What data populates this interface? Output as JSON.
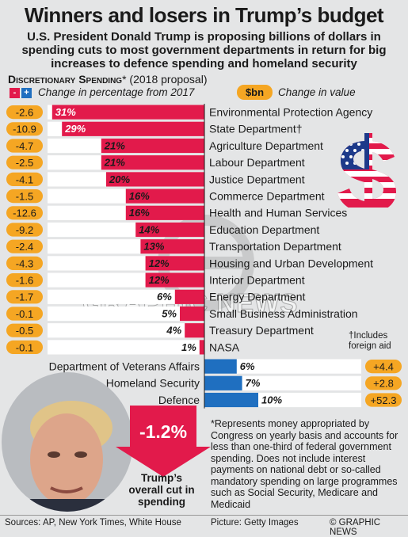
{
  "title": "Winners and losers in Trump’s budget",
  "subtitle": "U.S. President Donald Trump is proposing billions of dollars in spending cuts to most government departments in return for big increases to defence spending and homeland security",
  "section": {
    "title_bold": "Discretionary Spending",
    "title_rest": "* (2018 proposal)"
  },
  "legend": {
    "minus": "-",
    "plus": "+",
    "pct_label": "Change in percentage from 2017",
    "bn_badge": "$bn",
    "value_label": "Change in value"
  },
  "colors": {
    "cut": "#e21a4b",
    "increase": "#1f6fc0",
    "badge": "#f5a623",
    "arrow": "#e21a4b"
  },
  "chart_data": {
    "type": "bar",
    "title": "Discretionary Spending* (2018 proposal)",
    "cuts": [
      {
        "name": "Environmental Protection Agency",
        "pct": 31,
        "pct_label": "31%",
        "value_label": "-2.6",
        "value": -2.6
      },
      {
        "name": "State Department†",
        "pct": 29,
        "pct_label": "29%",
        "value_label": "-10.9",
        "value": -10.9
      },
      {
        "name": "Agriculture Department",
        "pct": 21,
        "pct_label": "21%",
        "value_label": "-4.7",
        "value": -4.7
      },
      {
        "name": "Labour Department",
        "pct": 21,
        "pct_label": "21%",
        "value_label": "-2.5",
        "value": -2.5
      },
      {
        "name": "Justice Department",
        "pct": 20,
        "pct_label": "20%",
        "value_label": "-4.1",
        "value": -4.1
      },
      {
        "name": "Commerce Department",
        "pct": 16,
        "pct_label": "16%",
        "value_label": "-1.5",
        "value": -1.5
      },
      {
        "name": "Health and Human Services",
        "pct": 16,
        "pct_label": "16%",
        "value_label": "-12.6",
        "value": -12.6
      },
      {
        "name": "Education Department",
        "pct": 14,
        "pct_label": "14%",
        "value_label": "-9.2",
        "value": -9.2
      },
      {
        "name": "Transportation Department",
        "pct": 13,
        "pct_label": "13%",
        "value_label": "-2.4",
        "value": -2.4
      },
      {
        "name": "Housing and Urban Development",
        "pct": 12,
        "pct_label": "12%",
        "value_label": "-4.3",
        "value": -4.3
      },
      {
        "name": "Interior Department",
        "pct": 12,
        "pct_label": "12%",
        "value_label": "-1.6",
        "value": -1.6
      },
      {
        "name": "Energy Department",
        "pct": 6,
        "pct_label": "6%",
        "value_label": "-1.7",
        "value": -1.7
      },
      {
        "name": "Small Business Administration",
        "pct": 5,
        "pct_label": "5%",
        "value_label": "-0.1",
        "value": -0.1
      },
      {
        "name": "Treasury Department",
        "pct": 4,
        "pct_label": "4%",
        "value_label": "-0.5",
        "value": -0.5
      },
      {
        "name": "NASA",
        "pct": 1,
        "pct_label": "1%",
        "value_label": "-0.1",
        "value": -0.1
      }
    ],
    "increases": [
      {
        "name": "Department of Veterans Affairs",
        "pct": 6,
        "pct_label": "6%",
        "value_label": "+4.4",
        "value": 4.4
      },
      {
        "name": "Homeland Security",
        "pct": 7,
        "pct_label": "7%",
        "value_label": "+2.8",
        "value": 2.8
      },
      {
        "name": "Defence",
        "pct": 10,
        "pct_label": "10%",
        "value_label": "+52.3",
        "value": 52.3
      }
    ]
  },
  "footnote_includes": "†Includes foreign aid",
  "footnote": "*Represents money appropriated by Congress on yearly basis and accounts for less than one-third of federal government spending. Does not include interest payments on national debt or so-called mandatory spending on large programmes such as Social Security, Medicare and Medicaid",
  "overall": {
    "value": "-1.2%",
    "label": "Trump’s overall cut in spending"
  },
  "watermark": "GRAPHIC NEWS",
  "footer": {
    "sources": "Sources: AP, New York Times, White House",
    "picture": "Picture: Getty Images",
    "credit": "© GRAPHIC NEWS"
  }
}
